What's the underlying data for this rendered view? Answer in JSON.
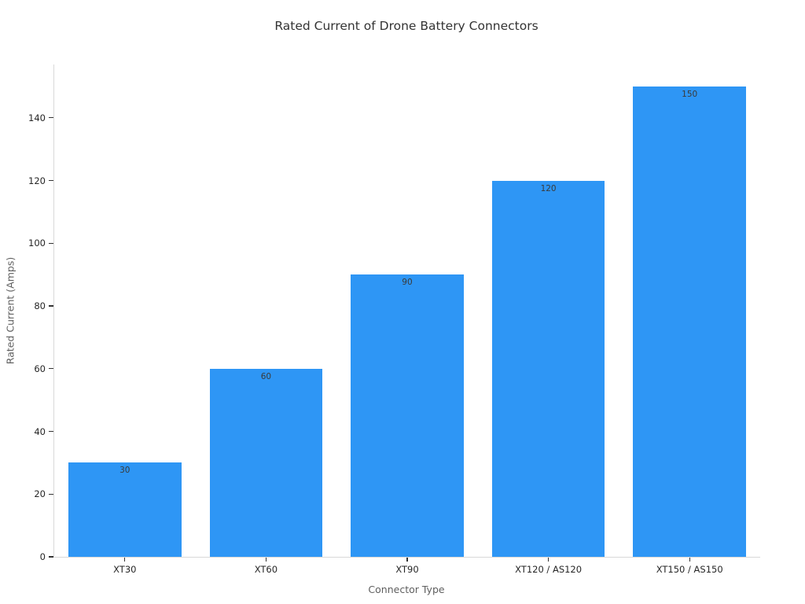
{
  "chart_data": {
    "type": "bar",
    "title": "Rated Current of Drone Battery Connectors",
    "xlabel": "Connector Type",
    "ylabel": "Rated Current (Amps)",
    "categories": [
      "XT30",
      "XT60",
      "XT90",
      "XT120 / AS120",
      "XT150 / AS150"
    ],
    "values": [
      30,
      60,
      90,
      120,
      150
    ],
    "bar_labels": [
      "30",
      "60",
      "90",
      "120",
      "150"
    ],
    "yticks": [
      0,
      20,
      40,
      60,
      80,
      100,
      120,
      140
    ],
    "ylim": [
      0,
      157
    ],
    "grid": false,
    "legend": "none",
    "colors": {
      "bar_fill": "#2e96f5",
      "title_text": "#333333",
      "tick_text": "#262626",
      "axis_label_text": "#5f5f5f",
      "bar_label_text": "#3a3a3a",
      "spine": "#d9d9d9",
      "tick_mark": "#333333",
      "background": "#ffffff"
    }
  }
}
